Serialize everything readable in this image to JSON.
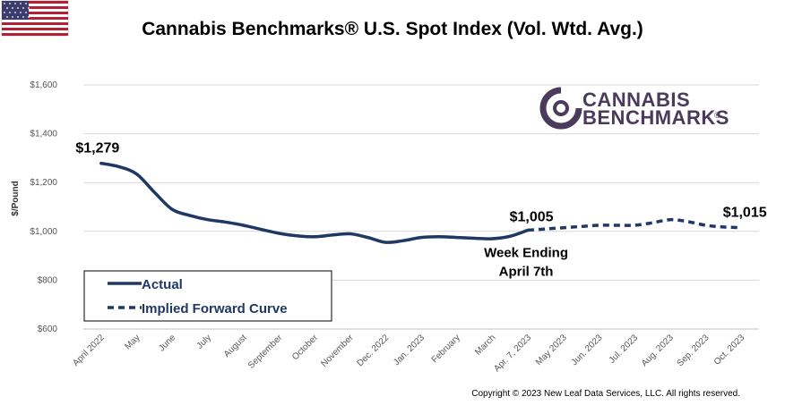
{
  "colors": {
    "series": "#1f3864",
    "grid": "#d9d9d9",
    "logo": "#4a3b5c",
    "flag_red": "#b22234",
    "flag_blue": "#3c3b6e"
  },
  "icons": {
    "flag": "us-flag-icon",
    "logo": "cannabis-benchmarks-logo"
  },
  "logo": {
    "line1": "CANNABIS",
    "line2": "BENCHMARKS",
    "mark": "®"
  },
  "copyright": "Copyright © 2023 New Leaf Data Services, LLC. All rights reserved.",
  "chart_data": {
    "type": "line",
    "title": "Cannabis Benchmarks® U.S. Spot Index (Vol. Wtd. Avg.)",
    "ylabel": "$/Pound",
    "xlabel": "",
    "ylim": [
      600,
      1600
    ],
    "yticks": [
      600,
      800,
      1000,
      1200,
      1400,
      1600
    ],
    "ytick_labels": [
      "$600",
      "$800",
      "$1,000",
      "$1,200",
      "$1,400",
      "$1,600"
    ],
    "categories": [
      "April 2022",
      "May",
      "June",
      "July",
      "August",
      "September",
      "October",
      "November",
      "Dec. 2022",
      "Jan. 2023",
      "February",
      "March",
      "Apr. 7, 2023",
      "May 2023",
      "Jun. 2023",
      "Jul. 2023",
      "Aug. 2023",
      "Sep. 2023",
      "Oct. 2023"
    ],
    "grid": true,
    "legend_position": "bottom-left",
    "series": [
      {
        "name": "Actual",
        "style": "solid",
        "x": [
          0,
          0.5,
          1,
          1.5,
          2,
          2.5,
          3,
          3.5,
          4,
          4.5,
          5,
          5.5,
          6,
          6.5,
          7,
          7.5,
          8,
          8.5,
          9,
          9.5,
          10,
          10.5,
          11,
          11.5,
          12
        ],
        "values": [
          1279,
          1265,
          1235,
          1160,
          1090,
          1065,
          1048,
          1038,
          1025,
          1008,
          992,
          982,
          978,
          985,
          990,
          975,
          955,
          962,
          975,
          978,
          975,
          972,
          970,
          980,
          1005
        ]
      },
      {
        "name": "Implied Forward Curve",
        "style": "dashed",
        "x": [
          12,
          12.5,
          13,
          13.5,
          14,
          14.5,
          15,
          15.5,
          16,
          16.5,
          17,
          17.5,
          18
        ],
        "values": [
          1005,
          1010,
          1015,
          1020,
          1025,
          1025,
          1025,
          1035,
          1048,
          1040,
          1025,
          1018,
          1015
        ]
      }
    ],
    "annotations": [
      {
        "text": "$1,279",
        "x": 0,
        "y": 1279
      },
      {
        "text": "$1,005",
        "x": 12,
        "y": 1005
      },
      {
        "text": "$1,015",
        "x": 18,
        "y": 1015
      },
      {
        "text": "Week Ending",
        "x": 12,
        "y": 1005
      },
      {
        "text": "April 7th",
        "x": 12,
        "y": 1005
      }
    ]
  }
}
